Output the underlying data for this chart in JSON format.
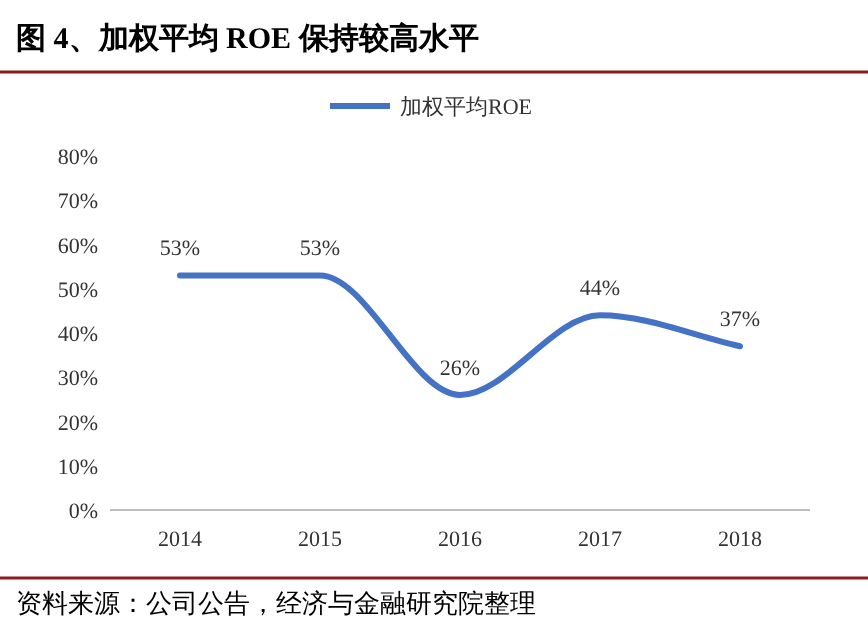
{
  "chart_data": {
    "type": "line",
    "title": "图 4、加权平均 ROE 保持较高水平",
    "categories": [
      "2014",
      "2015",
      "2016",
      "2017",
      "2018"
    ],
    "series": [
      {
        "name": "加权平均ROE",
        "color": "#4472c4",
        "values": [
          53,
          53,
          26,
          44,
          37
        ],
        "value_labels": [
          "53%",
          "53%",
          "26%",
          "44%",
          "37%"
        ]
      }
    ],
    "ylim": [
      0,
      80
    ],
    "yticks": [
      {
        "value": 0,
        "label": "0%"
      },
      {
        "value": 10,
        "label": "10%"
      },
      {
        "value": 20,
        "label": "20%"
      },
      {
        "value": 30,
        "label": "30%"
      },
      {
        "value": 40,
        "label": "40%"
      },
      {
        "value": 50,
        "label": "50%"
      },
      {
        "value": 60,
        "label": "60%"
      },
      {
        "value": 70,
        "label": "70%"
      },
      {
        "value": 80,
        "label": "80%"
      }
    ],
    "legend": "top",
    "marker": "none",
    "line_style": "solid",
    "annotations": [
      "资料来源：公司公告，经济与金融研究院整理"
    ]
  }
}
